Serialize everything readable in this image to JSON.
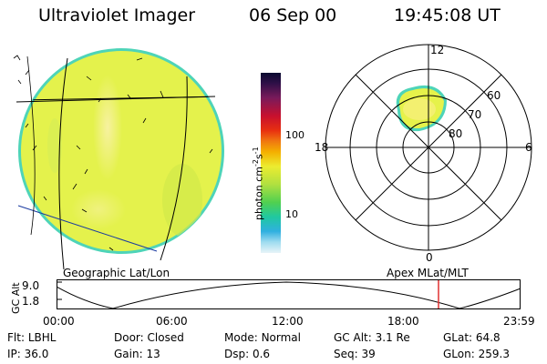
{
  "header": {
    "title": "Ultraviolet Imager",
    "date": "06 Sep 00",
    "time": "19:45:08 UT"
  },
  "colorbar": {
    "label_main": "photon cm",
    "label_exp1": "-2",
    "label_mid": "s",
    "label_exp2": "-1",
    "ticks": [
      "100",
      "10"
    ]
  },
  "polar_plot": {
    "lat_labels": [
      "80",
      "70",
      "60"
    ],
    "mlt_labels": [
      "12",
      "18",
      "6",
      "0"
    ]
  },
  "projection_labels": {
    "left": "Geographic Lat/Lon",
    "right": "Apex  MLat/MLT"
  },
  "altitude_strip": {
    "axis_label": "GC Alt",
    "y_ticks": [
      "9.0",
      "1.8"
    ],
    "x_ticks": [
      "00:00",
      "06:00",
      "12:00",
      "18:00",
      "23:59"
    ]
  },
  "info_rows": [
    [
      {
        "label": "Flt:",
        "value": "LBHL"
      },
      {
        "label": "Door:",
        "value": "Closed"
      },
      {
        "label": "Mode:",
        "value": "Normal"
      },
      {
        "label": "GC Alt:",
        "value": "3.1 Re"
      },
      {
        "label": "GLat:",
        "value": "64.8"
      }
    ],
    [
      {
        "label": "IP:",
        "value": "36.0"
      },
      {
        "label": "Gain:",
        "value": "13"
      },
      {
        "label": "Dsp:",
        "value": "0.6"
      },
      {
        "label": "Seq:",
        "value": "39"
      },
      {
        "label": "GLon:",
        "value": "259.3"
      }
    ]
  ],
  "colors": {
    "image_fill": "#e6f24a",
    "image_bright": "#f3f070",
    "image_edge": "#45d0c0",
    "time_marker": "#e03030"
  }
}
